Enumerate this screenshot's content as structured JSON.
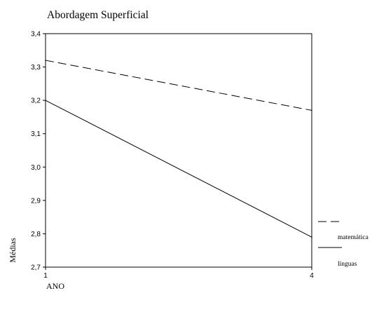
{
  "chart_data": {
    "type": "line",
    "title": "Abordagem Superficial",
    "xlabel": "ANO",
    "ylabel": "Médias",
    "x": [
      "1",
      "4"
    ],
    "ylim": [
      2.7,
      3.4
    ],
    "yticks": [
      "2,7",
      "2,8",
      "2,9",
      "3,0",
      "3,1",
      "3,2",
      "3,3",
      "3,4"
    ],
    "grid": false,
    "legend_position": "right",
    "series": [
      {
        "name": "matemática",
        "values": [
          3.32,
          3.17
        ],
        "style": "dashed",
        "color": "#000000"
      },
      {
        "name": "línguas",
        "values": [
          3.2,
          2.79
        ],
        "style": "solid",
        "color": "#000000"
      }
    ]
  }
}
